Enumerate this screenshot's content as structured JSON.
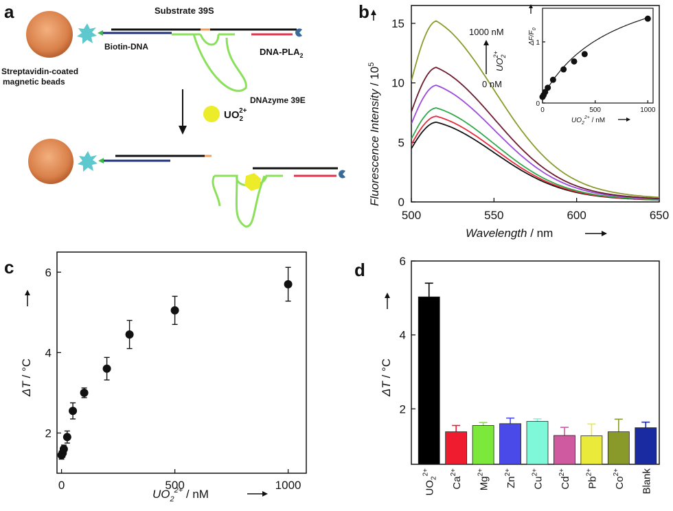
{
  "panels": {
    "a": {
      "letter": "a",
      "labels": {
        "substrate": "Substrate 39S",
        "biotin_dna": "Biotin-DNA",
        "dna_pla2": "DNA-PLA",
        "dna_pla2_sub": "2",
        "bead_line1": "Streptavidin-coated",
        "bead_line2": "magnetic beads",
        "dnazyme": "DNAzyme  39E",
        "ion": "UO",
        "ion_sub": "2",
        "ion_sup": "2+"
      }
    },
    "b": {
      "letter": "b"
    },
    "c": {
      "letter": "c"
    },
    "d": {
      "letter": "d"
    }
  },
  "colors": {
    "bead": "#d9804a",
    "star": "#5ec8cf",
    "navy": "#1d2f7a",
    "red": "#e0304a",
    "green": "#8ae05a",
    "orange": "#f0a060",
    "ion": "#ecec2a",
    "pac": "#3a6a9a"
  },
  "chart_data": [
    {
      "panel": "b",
      "type": "line",
      "x_unit": "nm",
      "ylabel_text": "Fluorescence Intensity",
      "ylabel_unit": "10",
      "ylabel_exp": "5",
      "xlabel_text": "Wavelength",
      "xlabel_unit": "nm",
      "xlim": [
        500,
        650
      ],
      "ylim": [
        0,
        16.5
      ],
      "xticks": [
        500,
        550,
        600,
        650
      ],
      "yticks": [
        0,
        5,
        10,
        15
      ],
      "peak_x": 515,
      "annotation_top": "1000 nM",
      "annotation_bottom": "0 nM",
      "annotation_ion": "UO",
      "annotation_ion_sub": "2",
      "annotation_ion_sup": "2+",
      "series": [
        {
          "peak": 6.7,
          "color": "#111111"
        },
        {
          "peak": 7.2,
          "color": "#e8283c"
        },
        {
          "peak": 7.9,
          "color": "#2fa84a"
        },
        {
          "peak": 9.8,
          "color": "#9a4adc"
        },
        {
          "peak": 11.3,
          "color": "#6a1a2a"
        },
        {
          "peak": 15.2,
          "color": "#8a9a2a"
        }
      ],
      "inset": {
        "xlim": [
          0,
          1050
        ],
        "ylim": [
          0,
          1.55
        ],
        "xticks": [
          0,
          500,
          1000
        ],
        "yticks": [
          0,
          1
        ],
        "ylabel": "ΔF/F",
        "ylabel_sub": "0",
        "xlabel_ion": "UO",
        "xlabel_sub": "2",
        "xlabel_sup": "2+",
        "xlabel_unit": "nM",
        "points": [
          {
            "x": 0,
            "y": 0.1
          },
          {
            "x": 10,
            "y": 0.13
          },
          {
            "x": 25,
            "y": 0.18
          },
          {
            "x": 50,
            "y": 0.25
          },
          {
            "x": 100,
            "y": 0.38
          },
          {
            "x": 200,
            "y": 0.55
          },
          {
            "x": 300,
            "y": 0.68
          },
          {
            "x": 400,
            "y": 0.8
          },
          {
            "x": 1000,
            "y": 1.38
          }
        ]
      }
    },
    {
      "panel": "c",
      "type": "scatter",
      "ylabel_text": "ΔT",
      "ylabel_unit": "°C",
      "xlabel_ion": "UO",
      "xlabel_sub": "2",
      "xlabel_sup": "2+",
      "xlabel_unit": "nM",
      "xlim": [
        -20,
        1080
      ],
      "ylim": [
        1.0,
        6.5
      ],
      "xticks": [
        0,
        500,
        1000
      ],
      "yticks": [
        2,
        4,
        6
      ],
      "points": [
        {
          "x": 0,
          "y": 1.45,
          "err": 0.1
        },
        {
          "x": 5,
          "y": 1.5,
          "err": 0.1
        },
        {
          "x": 10,
          "y": 1.6,
          "err": 0.1
        },
        {
          "x": 25,
          "y": 1.9,
          "err": 0.15
        },
        {
          "x": 50,
          "y": 2.55,
          "err": 0.2
        },
        {
          "x": 100,
          "y": 3.0,
          "err": 0.12
        },
        {
          "x": 200,
          "y": 3.6,
          "err": 0.28
        },
        {
          "x": 300,
          "y": 4.45,
          "err": 0.35
        },
        {
          "x": 500,
          "y": 5.05,
          "err": 0.35
        },
        {
          "x": 1000,
          "y": 5.7,
          "err": 0.42
        }
      ]
    },
    {
      "panel": "d",
      "type": "bar",
      "ylabel_text": "ΔT",
      "ylabel_unit": "°C",
      "ylim": [
        0.5,
        6.0
      ],
      "yticks": [
        2,
        4,
        6
      ],
      "bars": [
        {
          "base": "UO",
          "sub": "2",
          "sup": "2+",
          "value": 5.03,
          "err": 0.37,
          "color": "#000000"
        },
        {
          "base": "Ca",
          "sub": "",
          "sup": "2+",
          "value": 1.38,
          "err": 0.17,
          "color": "#ee1c2e"
        },
        {
          "base": "Mg",
          "sub": "",
          "sup": "2+",
          "value": 1.55,
          "err": 0.08,
          "color": "#7ce83a"
        },
        {
          "base": "Zn",
          "sub": "",
          "sup": "2+",
          "value": 1.6,
          "err": 0.15,
          "color": "#4a4ae8"
        },
        {
          "base": "Cu",
          "sub": "",
          "sup": "2+",
          "value": 1.66,
          "err": 0.07,
          "color": "#7ef8d8"
        },
        {
          "base": "Cd",
          "sub": "",
          "sup": "2+",
          "value": 1.28,
          "err": 0.22,
          "color": "#d05aa0"
        },
        {
          "base": "Pb",
          "sub": "",
          "sup": "2+",
          "value": 1.27,
          "err": 0.32,
          "color": "#eaea3a"
        },
        {
          "base": "Co",
          "sub": "",
          "sup": "2+",
          "value": 1.38,
          "err": 0.34,
          "color": "#8a9a2a"
        },
        {
          "base": "Blank",
          "sub": "",
          "sup": "",
          "value": 1.49,
          "err": 0.15,
          "color": "#1a2aa0"
        }
      ]
    }
  ]
}
